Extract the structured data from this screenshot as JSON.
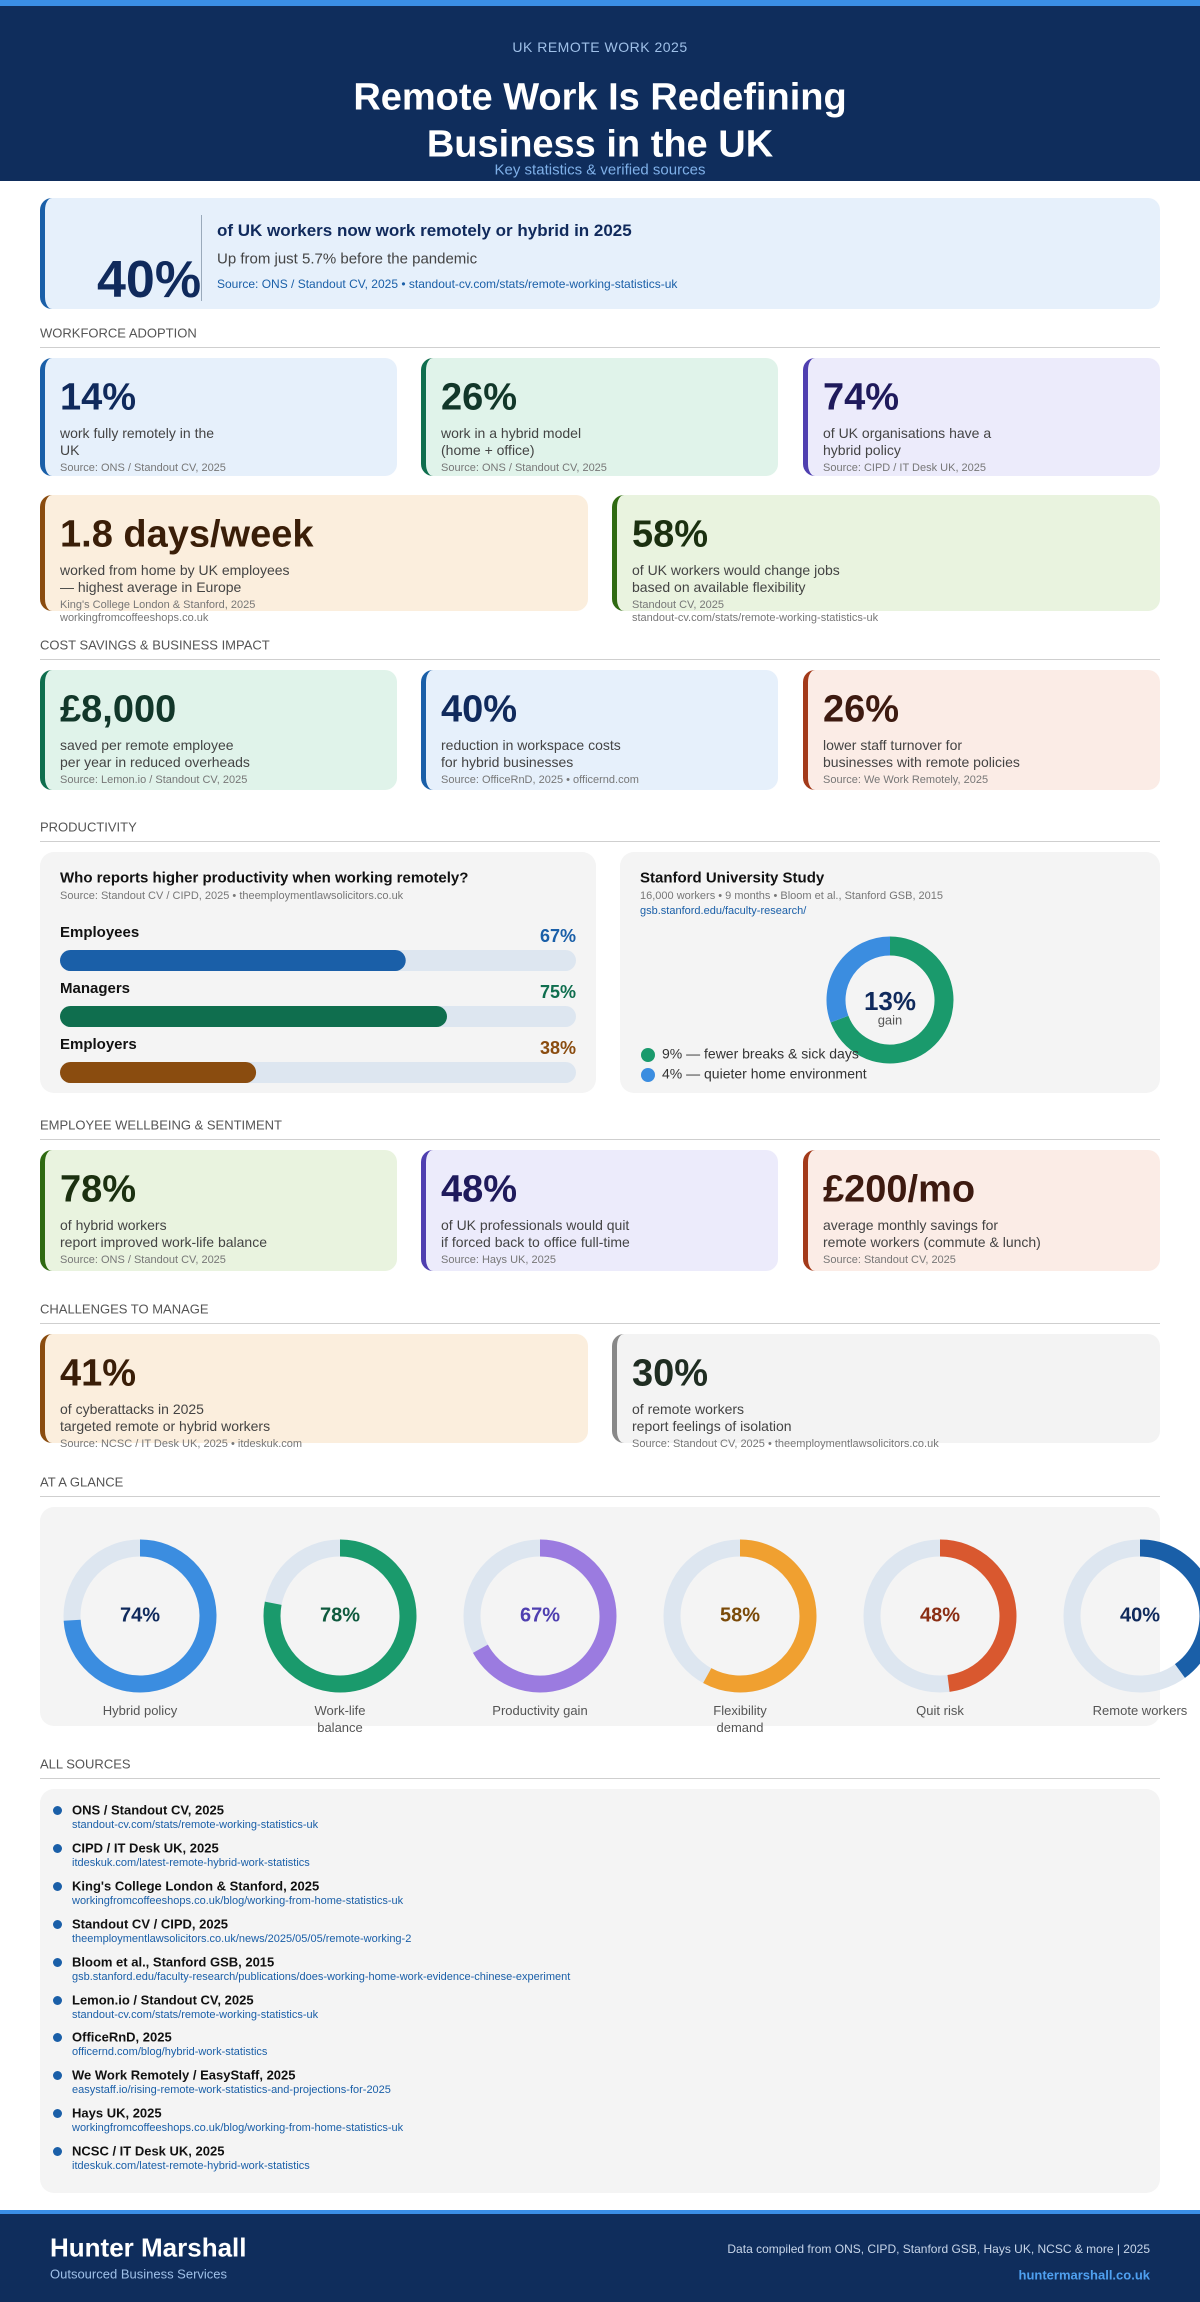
{
  "header": {
    "kicker": "UK REMOTE WORK 2025",
    "title_lines": [
      "Remote Work Is Redefining",
      "Business in the UK"
    ],
    "subtitle": "Key statistics & verified sources"
  },
  "hero": {
    "value": "40%",
    "headline": "of UK workers now work remotely or hybrid in 2025",
    "sub": "Up from just 5.7% before the pandemic",
    "source": "Source: ONS / Standout CV, 2025  •  standout-cv.com/stats/remote-working-statistics-uk",
    "color": "#1a5fa8",
    "bg": "#e6f0fb",
    "ink": "#102a5c"
  },
  "workforce": {
    "label": "WORKFORCE ADOPTION",
    "rows": [
      [
        {
          "value": "14%",
          "desc": [
            "work fully remotely in the",
            "UK"
          ],
          "source": [
            "Source: ONS / Standout CV, 2025"
          ],
          "color": "#1a5fa8",
          "bg": "#e6f0fb",
          "ink": "#102a5c"
        },
        {
          "value": "26%",
          "desc": [
            "work in a hybrid model",
            "(home + office)"
          ],
          "source": [
            "Source: ONS / Standout CV, 2025"
          ],
          "color": "#0f6e4e",
          "bg": "#e0f3ea",
          "ink": "#12372a"
        },
        {
          "value": "74%",
          "desc": [
            "of UK organisations have a",
            "hybrid policy"
          ],
          "source": [
            "Source: CIPD / IT Desk UK, 2025"
          ],
          "color": "#4f3fb0",
          "bg": "#ecebfb",
          "ink": "#1f1a5c"
        }
      ],
      [
        {
          "value": "1.8 days/week",
          "desc": [
            "worked from home by UK employees",
            "— highest average in Europe"
          ],
          "source": [
            "King's College London & Stanford, 2025",
            "workingfromcoffeeshops.co.uk"
          ],
          "color": "#8a4c0f",
          "bg": "#fbeedd",
          "ink": "#3a1e08"
        },
        {
          "value": "58%",
          "desc": [
            "of UK workers would change jobs",
            "based on available flexibility"
          ],
          "source": [
            "Standout CV, 2025",
            "standout-cv.com/stats/remote-working-statistics-uk"
          ],
          "color": "#2f6a12",
          "bg": "#e9f3df",
          "ink": "#1b3010"
        }
      ]
    ]
  },
  "cost": {
    "label": "COST SAVINGS & BUSINESS IMPACT",
    "rows": [
      [
        {
          "value": "£8,000",
          "desc": [
            "saved per remote employee",
            "per year in reduced overheads"
          ],
          "source": [
            "Source: Lemon.io / Standout CV, 2025"
          ],
          "color": "#0f6e4e",
          "bg": "#e0f3ea",
          "ink": "#12372a"
        },
        {
          "value": "40%",
          "desc": [
            "reduction in workspace costs",
            "for hybrid businesses"
          ],
          "source": [
            "Source: OfficeRnD, 2025  •  officernd.com"
          ],
          "color": "#1a5fa8",
          "bg": "#e6f0fb",
          "ink": "#102a5c"
        },
        {
          "value": "26%",
          "desc": [
            "lower staff turnover for",
            "businesses with remote policies"
          ],
          "source": [
            "Source: We Work Remotely, 2025"
          ],
          "color": "#a33a1a",
          "bg": "#fbece6",
          "ink": "#3d1a10"
        }
      ]
    ]
  },
  "productivity": {
    "label": "PRODUCTIVITY",
    "bars": {
      "title": "Who reports higher productivity when working remotely?",
      "source": "Source: Standout CV / CIPD, 2025  •  theemploymentlawsolicitors.co.uk",
      "categories": [
        "Employees",
        "Managers",
        "Employers"
      ],
      "values": [
        67,
        75,
        38
      ],
      "value_labels": [
        "67%",
        "75%",
        "38%"
      ],
      "colors": [
        "#1a5fa8",
        "#0f6e4e",
        "#8a4c0f"
      ],
      "xlim": [
        0,
        100
      ]
    },
    "study": {
      "title": "Stanford University Study",
      "sub": "16,000 workers • 9 months • Bloom et al., Stanford GSB, 2015",
      "link": "gsb.stanford.edu/faculty-research/",
      "center_value": "13%",
      "center_label": "gain",
      "donut": {
        "labels": [
          "9% — fewer breaks & sick days",
          "4% — quieter home environment"
        ],
        "values": [
          9,
          4
        ],
        "colors": [
          "#1a9a6c",
          "#3b8de0"
        ]
      }
    }
  },
  "wellbeing": {
    "label": "EMPLOYEE WELLBEING & SENTIMENT",
    "rows": [
      [
        {
          "value": "78%",
          "desc": [
            "of hybrid workers",
            "report improved work-life balance"
          ],
          "source": [
            "Source: ONS / Standout CV, 2025"
          ],
          "color": "#2f6a12",
          "bg": "#e9f3df",
          "ink": "#1b3010"
        },
        {
          "value": "48%",
          "desc": [
            "of UK professionals would quit",
            "if forced back to office full-time"
          ],
          "source": [
            "Source: Hays UK, 2025"
          ],
          "color": "#4f3fb0",
          "bg": "#ecebfb",
          "ink": "#1f1a5c"
        },
        {
          "value": "£200/mo",
          "desc": [
            "average monthly savings for",
            "remote workers (commute & lunch)"
          ],
          "source": [
            "Source: Standout CV, 2025"
          ],
          "color": "#a33a1a",
          "bg": "#fbece6",
          "ink": "#3d1a10"
        }
      ]
    ]
  },
  "challenges": {
    "label": "CHALLENGES TO MANAGE",
    "rows": [
      [
        {
          "value": "41%",
          "desc": [
            "of cyberattacks in 2025",
            "targeted remote or hybrid workers"
          ],
          "source": [
            "Source: NCSC / IT Desk UK, 2025  •  itdeskuk.com"
          ],
          "color": "#8a4c0f",
          "bg": "#fbeedd",
          "ink": "#3a1e08"
        },
        {
          "value": "30%",
          "desc": [
            "of remote workers",
            "report feelings of isolation"
          ],
          "source": [
            "Source: Standout CV, 2025  •  theemploymentlawsolicitors.co.uk"
          ],
          "color": "#888888",
          "bg": "#f3f3f3",
          "ink": "#1f2d22"
        }
      ]
    ]
  },
  "glance": {
    "label": "AT A GLANCE",
    "categories": [
      "Hybrid policy",
      "Work-life balance",
      "Productivity gain",
      "Flexibility demand",
      "Quit risk",
      "Remote workers"
    ],
    "values": [
      74,
      78,
      67,
      58,
      48,
      40
    ],
    "value_labels": [
      "74%",
      "78%",
      "67%",
      "58%",
      "48%",
      "40%"
    ],
    "colors": [
      "#3b8de0",
      "#1a9a6c",
      "#9b7be0",
      "#f0a030",
      "#d9582f",
      "#1a5fa8"
    ],
    "ink": [
      "#102a5c",
      "#0f5a3e",
      "#4f3fb0",
      "#7a4a08",
      "#8a2e14",
      "#102a5c"
    ],
    "ylim": [
      0,
      100
    ]
  },
  "sources": {
    "label": "ALL SOURCES",
    "items": [
      {
        "name": "ONS / Standout CV, 2025",
        "url": "standout-cv.com/stats/remote-working-statistics-uk"
      },
      {
        "name": "CIPD / IT Desk UK, 2025",
        "url": "itdeskuk.com/latest-remote-hybrid-work-statistics"
      },
      {
        "name": "King's College London & Stanford, 2025",
        "url": "workingfromcoffeeshops.co.uk/blog/working-from-home-statistics-uk"
      },
      {
        "name": "Standout CV / CIPD, 2025",
        "url": "theemploymentlawsolicitors.co.uk/news/2025/05/05/remote-working-2"
      },
      {
        "name": "Bloom et al., Stanford GSB, 2015",
        "url": "gsb.stanford.edu/faculty-research/publications/does-working-home-work-evidence-chinese-experiment"
      },
      {
        "name": "Lemon.io / Standout CV, 2025",
        "url": "standout-cv.com/stats/remote-working-statistics-uk"
      },
      {
        "name": "OfficeRnD, 2025",
        "url": "officernd.com/blog/hybrid-work-statistics"
      },
      {
        "name": "We Work Remotely / EasyStaff, 2025",
        "url": "easystaff.io/rising-remote-work-statistics-and-projections-for-2025"
      },
      {
        "name": "Hays UK, 2025",
        "url": "workingfromcoffeeshops.co.uk/blog/working-from-home-statistics-uk"
      },
      {
        "name": "NCSC / IT Desk UK, 2025",
        "url": "itdeskuk.com/latest-remote-hybrid-work-statistics"
      }
    ]
  },
  "footer": {
    "brand": "Hunter Marshall",
    "tagline": "Outsourced Business Services",
    "note": "Data compiled from ONS, CIPD, Stanford GSB, Hays UK, NCSC & more  |  2025",
    "site": "huntermarshall.co.uk"
  }
}
